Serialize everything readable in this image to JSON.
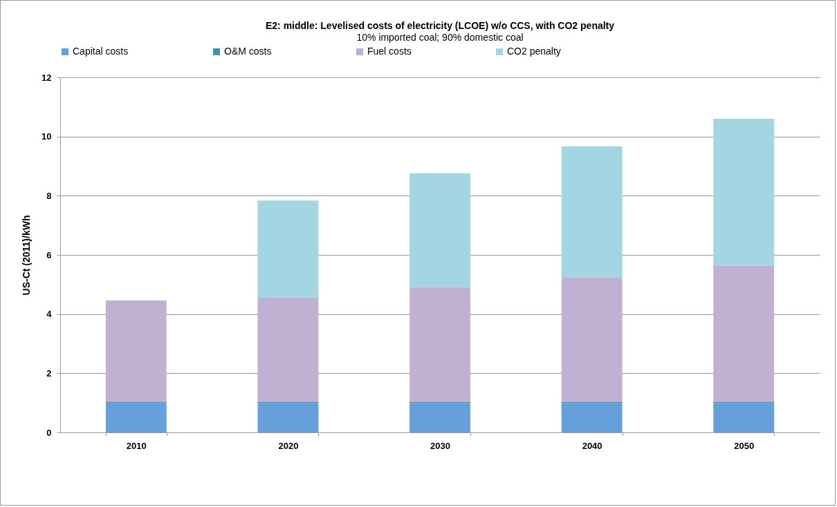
{
  "chart_data": {
    "type": "bar",
    "title": "E2: middle: Levelised costs of electricity (LCOE) w/o CCS, with CO2 penalty",
    "subtitle": "10% imported coal; 90% domestic coal",
    "ylabel": "US-Ct (2011)/kWh",
    "categories": [
      "2010",
      "2020",
      "2030",
      "2040",
      "2050"
    ],
    "stacked": true,
    "series": [
      {
        "name": "Capital costs",
        "color": "#659fdc",
        "values": [
          1.0,
          1.0,
          1.0,
          1.0,
          1.0
        ]
      },
      {
        "name": "O&M costs",
        "color": "#3d96ab",
        "values": [
          0.03,
          0.03,
          0.03,
          0.03,
          0.03
        ]
      },
      {
        "name": "Fuel costs",
        "color": "#c0b1d3",
        "values": [
          3.43,
          3.52,
          3.88,
          4.22,
          4.6
        ]
      },
      {
        "name": "CO2 penalty",
        "color": "#a3d5e3",
        "values": [
          0,
          3.29,
          3.85,
          4.42,
          4.97
        ]
      }
    ],
    "ylim": [
      0,
      12
    ],
    "yticks": [
      0,
      2,
      4,
      6,
      8,
      10,
      12
    ],
    "grid": "y",
    "legend": "top"
  }
}
